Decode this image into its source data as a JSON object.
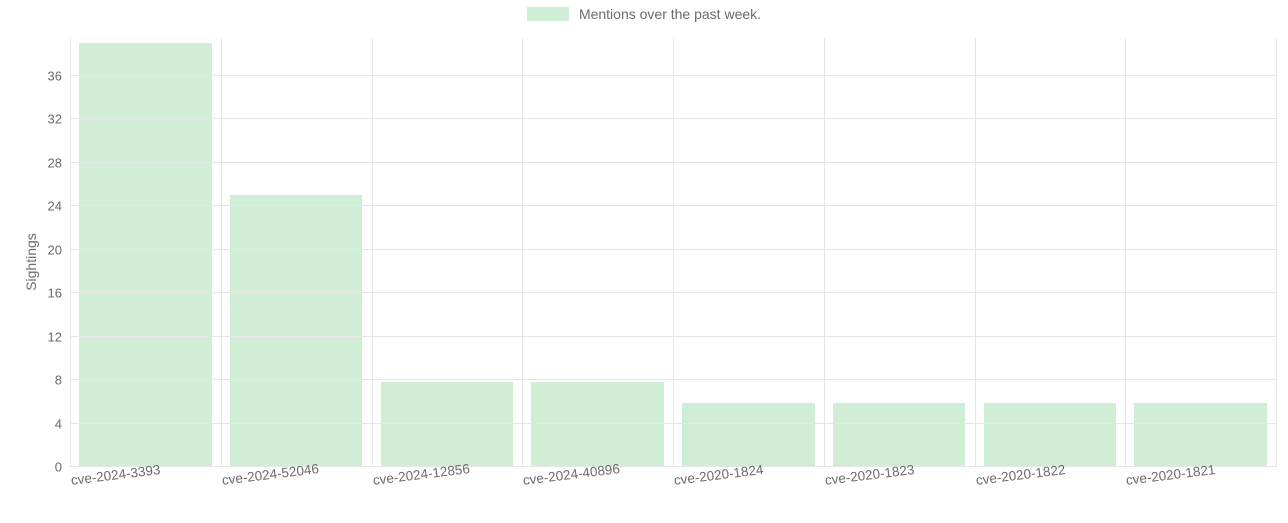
{
  "chart": {
    "type": "bar",
    "legend_label": "Mentions over the past week.",
    "ylabel": "Sightings",
    "categories": [
      "cve-2024-3393",
      "cve-2024-52046",
      "cve-2024-12856",
      "cve-2024-40896",
      "cve-2020-1824",
      "cve-2020-1823",
      "cve-2020-1822",
      "cve-2020-1821"
    ],
    "values": [
      39,
      25,
      7.8,
      7.8,
      5.9,
      5.9,
      5.9,
      5.9
    ],
    "bar_color": "#d0edd5",
    "bar_border_color": "#d0edd5",
    "background_color": "#ffffff",
    "grid_color": "#e6e6e6",
    "axis_text_color": "#6b6b6b",
    "legend_swatch_color": "#d0edd5",
    "yticks": [
      0,
      4,
      8,
      12,
      16,
      20,
      24,
      28,
      32,
      36
    ],
    "ymax": 39.5,
    "ymin": 0,
    "bar_width_ratio": 0.88,
    "label_fontsize": 13.5,
    "tick_fontsize": 13,
    "legend_fontsize": 14,
    "ylabel_fontsize": 14,
    "xlabel_rotation_deg": -7
  }
}
